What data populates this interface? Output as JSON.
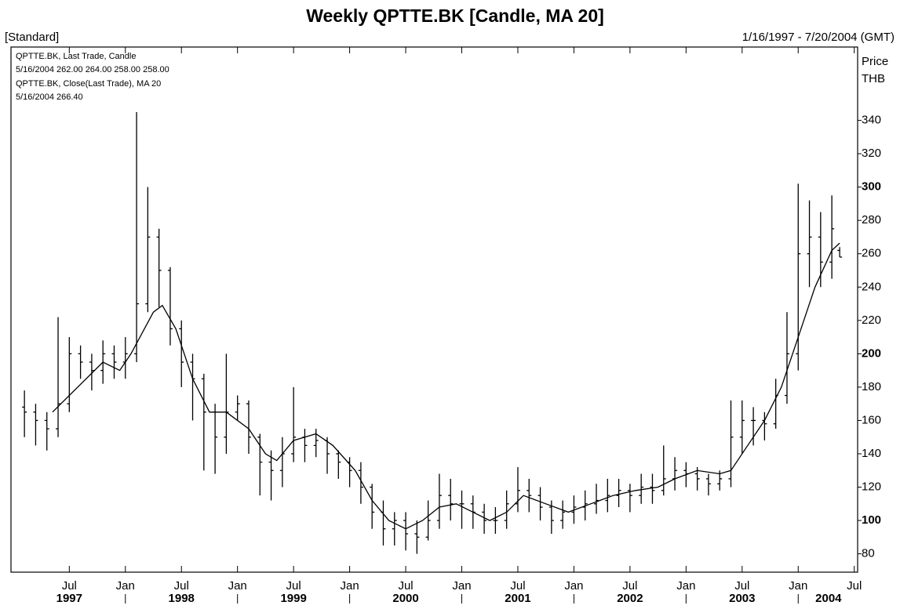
{
  "chart_data": {
    "type": "candlestick",
    "title": "Weekly QPTTE.BK [Candle, MA 20]",
    "subtitle_left": "[Standard]",
    "subtitle_right": "1/16/1997 - 7/20/2004 (GMT)",
    "y_axis_label": [
      "Price",
      "THB"
    ],
    "legend_values": [
      "5/16/2004 262.00 264.00 258.00 258.00",
      "5/16/2004 266.40"
    ],
    "xlim": [
      1996.98,
      2004.53
    ],
    "ylim": [
      69,
      384
    ],
    "yticks": [
      80,
      100,
      120,
      140,
      160,
      180,
      200,
      220,
      240,
      260,
      280,
      300,
      320,
      340
    ],
    "xticks": [
      {
        "value": 1997.5,
        "label": "Jul"
      },
      {
        "value": 1998,
        "label": "Jan"
      },
      {
        "value": 1998.5,
        "label": "Jul"
      },
      {
        "value": 1999,
        "label": "Jan"
      },
      {
        "value": 1999.5,
        "label": "Jul"
      },
      {
        "value": 2000,
        "label": "Jan"
      },
      {
        "value": 2000.5,
        "label": "Jul"
      },
      {
        "value": 2001,
        "label": "Jan"
      },
      {
        "value": 2001.5,
        "label": "Jul"
      },
      {
        "value": 2002,
        "label": "Jan"
      },
      {
        "value": 2002.5,
        "label": "Jul"
      },
      {
        "value": 2003,
        "label": "Jan"
      },
      {
        "value": 2003.5,
        "label": "Jul"
      },
      {
        "value": 2004,
        "label": "Jan"
      },
      {
        "value": 2004.5,
        "label": "Jul"
      }
    ],
    "xyears": [
      {
        "value": 1997.5,
        "label": "1997"
      },
      {
        "value": 1998.5,
        "label": "1998"
      },
      {
        "value": 1999.5,
        "label": "1999"
      },
      {
        "value": 2000.5,
        "label": "2000"
      },
      {
        "value": 2001.5,
        "label": "2001"
      },
      {
        "value": 2002.5,
        "label": "2002"
      },
      {
        "value": 2003.5,
        "label": "2003"
      },
      {
        "value": 2004.27,
        "label": "2004"
      }
    ],
    "series": [
      {
        "name": "QPTTE.BK, Last Trade, Candle",
        "type": "candle",
        "color": "#000000",
        "x": [
          1997.1,
          1997.2,
          1997.3,
          1997.4,
          1997.5,
          1997.6,
          1997.7,
          1997.8,
          1997.9,
          1998.0,
          1998.1,
          1998.2,
          1998.3,
          1998.4,
          1998.5,
          1998.6,
          1998.7,
          1998.8,
          1998.9,
          1999.0,
          1999.1,
          1999.2,
          1999.3,
          1999.4,
          1999.5,
          1999.6,
          1999.7,
          1999.8,
          1999.9,
          2000.0,
          2000.1,
          2000.2,
          2000.3,
          2000.4,
          2000.5,
          2000.6,
          2000.7,
          2000.8,
          2000.9,
          2001.0,
          2001.1,
          2001.2,
          2001.3,
          2001.4,
          2001.5,
          2001.6,
          2001.7,
          2001.8,
          2001.9,
          2002.0,
          2002.1,
          2002.2,
          2002.3,
          2002.4,
          2002.5,
          2002.6,
          2002.7,
          2002.8,
          2002.9,
          2003.0,
          2003.1,
          2003.2,
          2003.3,
          2003.4,
          2003.5,
          2003.6,
          2003.7,
          2003.8,
          2003.9,
          2004.0,
          2004.1,
          2004.2,
          2004.3,
          2004.37
        ],
        "open": [
          168,
          165,
          160,
          155,
          170,
          200,
          195,
          190,
          200,
          195,
          200,
          230,
          270,
          250,
          215,
          195,
          185,
          165,
          150,
          165,
          170,
          150,
          135,
          130,
          140,
          150,
          145,
          148,
          140,
          135,
          130,
          120,
          105,
          95,
          100,
          92,
          90,
          100,
          115,
          110,
          110,
          105,
          100,
          100,
          110,
          118,
          115,
          108,
          100,
          105,
          108,
          110,
          112,
          115,
          118,
          115,
          120,
          118,
          125,
          130,
          128,
          125,
          122,
          125,
          150,
          160,
          160,
          158,
          175,
          200,
          260,
          270,
          255,
          262
        ],
        "high": [
          178,
          170,
          165,
          222,
          210,
          205,
          200,
          208,
          205,
          210,
          345,
          300,
          275,
          252,
          220,
          200,
          188,
          170,
          200,
          175,
          172,
          152,
          142,
          150,
          180,
          155,
          155,
          150,
          142,
          138,
          135,
          122,
          112,
          105,
          105,
          100,
          112,
          128,
          125,
          118,
          115,
          110,
          108,
          118,
          132,
          125,
          120,
          112,
          112,
          115,
          118,
          122,
          125,
          125,
          122,
          128,
          128,
          145,
          138,
          135,
          132,
          128,
          130,
          172,
          172,
          168,
          165,
          185,
          225,
          302,
          292,
          285,
          295,
          264
        ],
        "low": [
          150,
          145,
          142,
          150,
          165,
          185,
          178,
          182,
          185,
          185,
          195,
          225,
          228,
          205,
          180,
          160,
          130,
          128,
          140,
          160,
          140,
          115,
          112,
          120,
          135,
          135,
          138,
          128,
          125,
          120,
          110,
          95,
          85,
          85,
          82,
          80,
          88,
          95,
          100,
          95,
          95,
          92,
          92,
          95,
          105,
          105,
          100,
          92,
          95,
          98,
          100,
          104,
          105,
          108,
          105,
          110,
          110,
          115,
          118,
          120,
          118,
          115,
          118,
          120,
          140,
          145,
          148,
          155,
          170,
          190,
          240,
          240,
          245,
          258
        ],
        "close": [
          165,
          160,
          155,
          170,
          200,
          195,
          190,
          200,
          195,
          200,
          230,
          270,
          250,
          215,
          195,
          185,
          165,
          150,
          165,
          170,
          150,
          135,
          130,
          140,
          150,
          145,
          148,
          140,
          135,
          130,
          120,
          105,
          95,
          100,
          92,
          90,
          100,
          115,
          110,
          110,
          105,
          100,
          100,
          110,
          118,
          115,
          108,
          100,
          105,
          108,
          110,
          112,
          115,
          118,
          115,
          120,
          118,
          125,
          130,
          128,
          125,
          122,
          125,
          150,
          160,
          160,
          158,
          175,
          200,
          260,
          270,
          255,
          275,
          258
        ]
      },
      {
        "name": "QPTTE.BK, Close(Last Trade), MA 20",
        "type": "line",
        "color": "#000000",
        "x": [
          1997.35,
          1997.8,
          1997.95,
          1998.05,
          1998.25,
          1998.33,
          1998.45,
          1998.6,
          1998.75,
          1998.9,
          1999.1,
          1999.25,
          1999.35,
          1999.5,
          1999.7,
          1999.85,
          2000.05,
          2000.2,
          2000.35,
          2000.5,
          2000.65,
          2000.8,
          2000.95,
          2001.1,
          2001.25,
          2001.4,
          2001.55,
          2001.75,
          2001.95,
          2002.15,
          2002.35,
          2002.55,
          2002.75,
          2002.9,
          2003.1,
          2003.3,
          2003.4,
          2003.55,
          2003.7,
          2003.85,
          2004.0,
          2004.15,
          2004.3,
          2004.37
        ],
        "values": [
          165,
          195,
          190,
          200,
          225,
          229,
          215,
          185,
          165,
          165,
          155,
          140,
          136,
          148,
          152,
          145,
          130,
          112,
          100,
          95,
          100,
          108,
          110,
          105,
          100,
          105,
          115,
          110,
          105,
          110,
          115,
          118,
          120,
          125,
          130,
          128,
          130,
          145,
          160,
          180,
          210,
          240,
          262,
          266.4
        ]
      }
    ]
  }
}
